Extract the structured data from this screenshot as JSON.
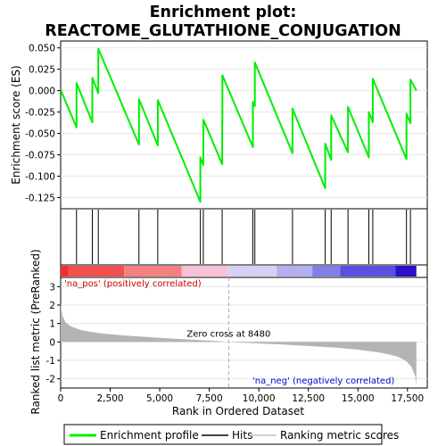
{
  "chart_data": {
    "type": "line",
    "title_line1": "Enrichment plot:",
    "title_line2": "REACTOME_GLUTATHIONE_CONJUGATION",
    "xlabel": "Rank in Ordered Dataset",
    "es_ylabel": "Enrichment score (ES)",
    "metric_ylabel": "Ranked list metric (PreRanked)",
    "xlim": [
      0,
      18500
    ],
    "es_ylim": [
      -0.138,
      0.058
    ],
    "metric_ylim": [
      -2.5,
      3.5
    ],
    "x_ticks": [
      0,
      2500,
      5000,
      7500,
      10000,
      12500,
      15000,
      17500
    ],
    "x_tick_labels": [
      "0",
      "2,500",
      "5,000",
      "7,500",
      "10,000",
      "12,500",
      "15,000",
      "17,500"
    ],
    "es_ticks": [
      0.05,
      0.025,
      0.0,
      -0.025,
      -0.05,
      -0.075,
      -0.1,
      -0.125
    ],
    "es_tick_labels": [
      "0.050",
      "0.025",
      "0.000",
      "-0.025",
      "-0.050",
      "-0.075",
      "-0.100",
      "-0.125"
    ],
    "metric_ticks": [
      3,
      2,
      1,
      0,
      -1,
      -2
    ],
    "metric_tick_labels": [
      "3",
      "2",
      "1",
      "0",
      "-1",
      "-2"
    ],
    "hits": [
      800,
      1600,
      1900,
      3950,
      4900,
      7050,
      7200,
      8150,
      9700,
      9800,
      11700,
      13350,
      13650,
      14500,
      15550,
      15750,
      17450,
      17650
    ],
    "es_curve": {
      "x": [
        0,
        800,
        800,
        1600,
        1600,
        1900,
        1900,
        3950,
        3950,
        4900,
        4900,
        7050,
        7050,
        7200,
        7200,
        8150,
        8150,
        8160,
        8160,
        9700,
        9700,
        9800,
        9800,
        11700,
        11700,
        13350,
        13350,
        13650,
        13650,
        14500,
        14500,
        15550,
        15550,
        15750,
        15750,
        17450,
        17450,
        17650,
        17650,
        17950
      ],
      "y": [
        0.001,
        -0.043,
        0.009,
        -0.037,
        0.015,
        -0.003,
        0.049,
        -0.063,
        -0.01,
        -0.064,
        -0.011,
        -0.13,
        -0.078,
        -0.087,
        -0.034,
        -0.086,
        -0.035,
        -0.036,
        0.018,
        -0.066,
        -0.013,
        -0.018,
        0.033,
        -0.073,
        -0.021,
        -0.114,
        -0.062,
        -0.081,
        -0.029,
        -0.072,
        -0.019,
        -0.078,
        -0.025,
        -0.037,
        0.014,
        -0.08,
        -0.027,
        -0.038,
        0.013,
        0.0
      ]
    },
    "metric_curve": {
      "x": [
        0,
        100,
        250,
        500,
        1000,
        1500,
        2000,
        2500,
        3000,
        4000,
        5000,
        6000,
        7000,
        8000,
        8480,
        9000,
        10000,
        11000,
        12000,
        13000,
        14000,
        15000,
        16000,
        16500,
        17000,
        17300,
        17500,
        17700,
        17800,
        17900,
        17950
      ],
      "y": [
        2.0,
        1.4,
        1.05,
        0.85,
        0.65,
        0.55,
        0.47,
        0.42,
        0.37,
        0.29,
        0.22,
        0.16,
        0.1,
        0.04,
        0.0,
        -0.03,
        -0.08,
        -0.13,
        -0.19,
        -0.25,
        -0.32,
        -0.42,
        -0.56,
        -0.66,
        -0.8,
        -0.95,
        -1.1,
        -1.35,
        -1.6,
        -1.9,
        -2.4
      ]
    },
    "zero_cross_label": "Zero cross at 8480",
    "zero_cross_x": 8480,
    "pos_label": "'na_pos' (positively correlated)",
    "neg_label": "'na_neg' (negatively correlated)",
    "bar_gradient": [
      {
        "x0": 0,
        "x1": 400,
        "color": "#f03030"
      },
      {
        "x0": 400,
        "x1": 3200,
        "color": "#f25050"
      },
      {
        "x0": 3200,
        "x1": 6100,
        "color": "#f58080"
      },
      {
        "x0": 6100,
        "x1": 8400,
        "color": "#f8c0d8"
      },
      {
        "x0": 8400,
        "x1": 10900,
        "color": "#d8d0f4"
      },
      {
        "x0": 10900,
        "x1": 12700,
        "color": "#b4b0f0"
      },
      {
        "x0": 12700,
        "x1": 14100,
        "color": "#8080e8"
      },
      {
        "x0": 14100,
        "x1": 16900,
        "color": "#5a50e0"
      },
      {
        "x0": 16900,
        "x1": 17950,
        "color": "#2a10c8"
      }
    ],
    "colors": {
      "es_line": "#00ee00",
      "hit_line": "#000000",
      "metric_fill": "#b4b4b4",
      "zero_line": "#a0a0e0",
      "pos_text": "#cc0000",
      "neg_text": "#0000cc"
    },
    "legend": [
      {
        "label": "Enrichment profile",
        "icon": "green-line-icon"
      },
      {
        "label": "Hits",
        "icon": "black-line-icon"
      },
      {
        "label": "Ranking metric scores",
        "icon": "gray-line-icon"
      }
    ]
  }
}
